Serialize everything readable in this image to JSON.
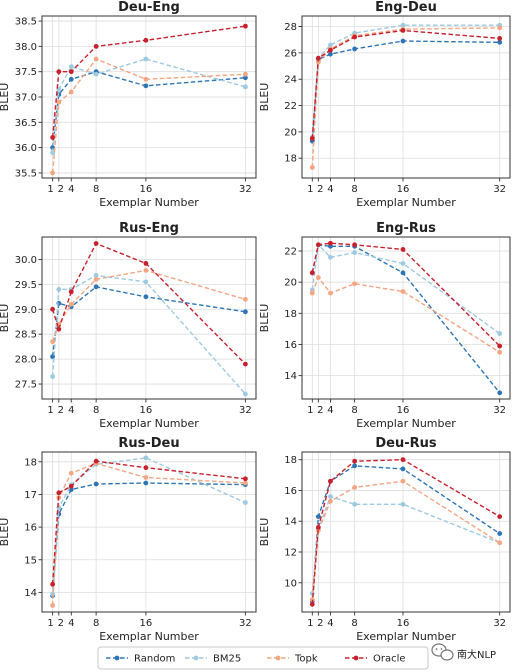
{
  "chart_data": [
    {
      "type": "line",
      "title": "Deu-Eng",
      "xlabel": "Exemplar Number",
      "ylabel": "BLEU",
      "x": [
        1,
        2,
        4,
        8,
        16,
        32
      ],
      "xticks": [
        "1",
        "2",
        "4",
        "8",
        "16",
        "32"
      ],
      "ylim": [
        35.4,
        38.6
      ],
      "yticks": [
        "35.5",
        "36.0",
        "36.5",
        "37.0",
        "37.5",
        "38.0",
        "38.5"
      ],
      "grid": true,
      "series": [
        {
          "name": "Random",
          "values": [
            36.0,
            37.05,
            37.35,
            37.5,
            37.22,
            37.38
          ]
        },
        {
          "name": "BM25",
          "values": [
            35.9,
            37.15,
            37.6,
            37.45,
            37.75,
            37.2
          ]
        },
        {
          "name": "Topk",
          "values": [
            35.5,
            36.9,
            37.1,
            37.75,
            37.35,
            37.45
          ]
        },
        {
          "name": "Oracle",
          "values": [
            36.2,
            37.5,
            37.5,
            38.0,
            38.12,
            38.4
          ]
        }
      ]
    },
    {
      "type": "line",
      "title": "Eng-Deu",
      "xlabel": "Exemplar Number",
      "ylabel": "BLEU",
      "x": [
        1,
        2,
        4,
        8,
        16,
        32
      ],
      "xticks": [
        "1",
        "2",
        "4",
        "8",
        "16",
        "32"
      ],
      "ylim": [
        16.5,
        28.8
      ],
      "yticks": [
        "18",
        "20",
        "22",
        "24",
        "26",
        "28"
      ],
      "grid": true,
      "series": [
        {
          "name": "Random",
          "values": [
            19.3,
            25.5,
            25.9,
            26.3,
            26.9,
            26.8
          ]
        },
        {
          "name": "BM25",
          "values": [
            19.6,
            25.6,
            26.6,
            27.5,
            28.1,
            28.1
          ]
        },
        {
          "name": "Topk",
          "values": [
            17.3,
            25.3,
            26.3,
            27.3,
            27.8,
            27.9
          ]
        },
        {
          "name": "Oracle",
          "values": [
            19.5,
            25.6,
            26.2,
            27.2,
            27.7,
            27.1
          ]
        }
      ]
    },
    {
      "type": "line",
      "title": "Rus-Eng",
      "xlabel": "Exemplar Number",
      "ylabel": "BLEU",
      "x": [
        1,
        2,
        4,
        8,
        16,
        32
      ],
      "xticks": [
        "1",
        "2",
        "4",
        "8",
        "16",
        "32"
      ],
      "ylim": [
        27.2,
        30.45
      ],
      "yticks": [
        "27.5",
        "28.0",
        "28.5",
        "29.0",
        "29.5",
        "30.0"
      ],
      "grid": true,
      "series": [
        {
          "name": "Random",
          "values": [
            28.05,
            29.12,
            29.05,
            29.45,
            29.25,
            28.95
          ]
        },
        {
          "name": "BM25",
          "values": [
            27.65,
            29.4,
            29.4,
            29.68,
            29.55,
            27.3
          ]
        },
        {
          "name": "Topk",
          "values": [
            28.35,
            28.7,
            29.1,
            29.6,
            29.78,
            29.2
          ]
        },
        {
          "name": "Oracle",
          "values": [
            29.0,
            28.6,
            29.35,
            30.32,
            29.92,
            27.9
          ]
        }
      ]
    },
    {
      "type": "line",
      "title": "Eng-Rus",
      "xlabel": "Exemplar Number",
      "ylabel": "BLEU",
      "x": [
        1,
        2,
        4,
        8,
        16,
        32
      ],
      "xticks": [
        "1",
        "2",
        "4",
        "8",
        "16",
        "32"
      ],
      "ylim": [
        12.5,
        22.9
      ],
      "yticks": [
        "14",
        "16",
        "18",
        "20",
        "22"
      ],
      "grid": true,
      "series": [
        {
          "name": "Random",
          "values": [
            20.6,
            22.4,
            22.3,
            22.3,
            20.6,
            12.9
          ]
        },
        {
          "name": "BM25",
          "values": [
            19.5,
            22.4,
            21.6,
            21.9,
            21.2,
            16.7
          ]
        },
        {
          "name": "Topk",
          "values": [
            19.3,
            20.3,
            19.3,
            19.9,
            19.4,
            15.5
          ]
        },
        {
          "name": "Oracle",
          "values": [
            20.6,
            22.4,
            22.5,
            22.4,
            22.1,
            15.9
          ]
        }
      ]
    },
    {
      "type": "line",
      "title": "Rus-Deu",
      "xlabel": "Exemplar Number",
      "ylabel": "BLEU",
      "x": [
        1,
        2,
        4,
        8,
        16,
        32
      ],
      "xticks": [
        "1",
        "2",
        "4",
        "8",
        "16",
        "32"
      ],
      "ylim": [
        13.4,
        18.3
      ],
      "yticks": [
        "14",
        "15",
        "16",
        "17",
        "18"
      ],
      "grid": true,
      "series": [
        {
          "name": "Random",
          "values": [
            13.9,
            16.4,
            17.15,
            17.32,
            17.35,
            17.3
          ]
        },
        {
          "name": "BM25",
          "values": [
            13.95,
            16.6,
            17.3,
            17.92,
            18.12,
            16.75
          ]
        },
        {
          "name": "Topk",
          "values": [
            13.6,
            16.9,
            17.65,
            17.95,
            17.52,
            17.35
          ]
        },
        {
          "name": "Oracle",
          "values": [
            14.25,
            17.05,
            17.25,
            18.02,
            17.82,
            17.48
          ]
        }
      ]
    },
    {
      "type": "line",
      "title": "Deu-Rus",
      "xlabel": "Exemplar Number",
      "ylabel": "BLEU",
      "x": [
        1,
        2,
        4,
        8,
        16,
        32
      ],
      "xticks": [
        "1",
        "2",
        "4",
        "8",
        "16",
        "32"
      ],
      "ylim": [
        8.1,
        18.5
      ],
      "yticks": [
        "10",
        "12",
        "14",
        "16",
        "18"
      ],
      "grid": true,
      "series": [
        {
          "name": "Random",
          "values": [
            8.8,
            14.3,
            16.6,
            17.6,
            17.4,
            13.2
          ]
        },
        {
          "name": "BM25",
          "values": [
            9.3,
            13.5,
            15.6,
            15.1,
            15.1,
            12.6
          ]
        },
        {
          "name": "Topk",
          "values": [
            8.9,
            13.4,
            15.3,
            16.2,
            16.6,
            12.6
          ]
        },
        {
          "name": "Oracle",
          "values": [
            8.6,
            13.6,
            16.6,
            17.9,
            18.0,
            14.3
          ]
        }
      ]
    }
  ],
  "legend": {
    "placement": "bottom",
    "entries": [
      {
        "name": "Random",
        "color": "#2e75b6"
      },
      {
        "name": "BM25",
        "color": "#9ecae1"
      },
      {
        "name": "Topk",
        "color": "#f4a582"
      },
      {
        "name": "Oracle",
        "color": "#c8202c"
      }
    ]
  },
  "styles": {
    "Random": {
      "color": "#2e75b6",
      "dash": "dashed"
    },
    "BM25": {
      "color": "#9ecae1",
      "dash": "dashed"
    },
    "Topk": {
      "color": "#f4a582",
      "dash": "dashed"
    },
    "Oracle": {
      "color": "#c8202c",
      "dash": "dashed"
    }
  },
  "watermark": {
    "text": "南大NLP",
    "icon": "wechat-icon"
  }
}
